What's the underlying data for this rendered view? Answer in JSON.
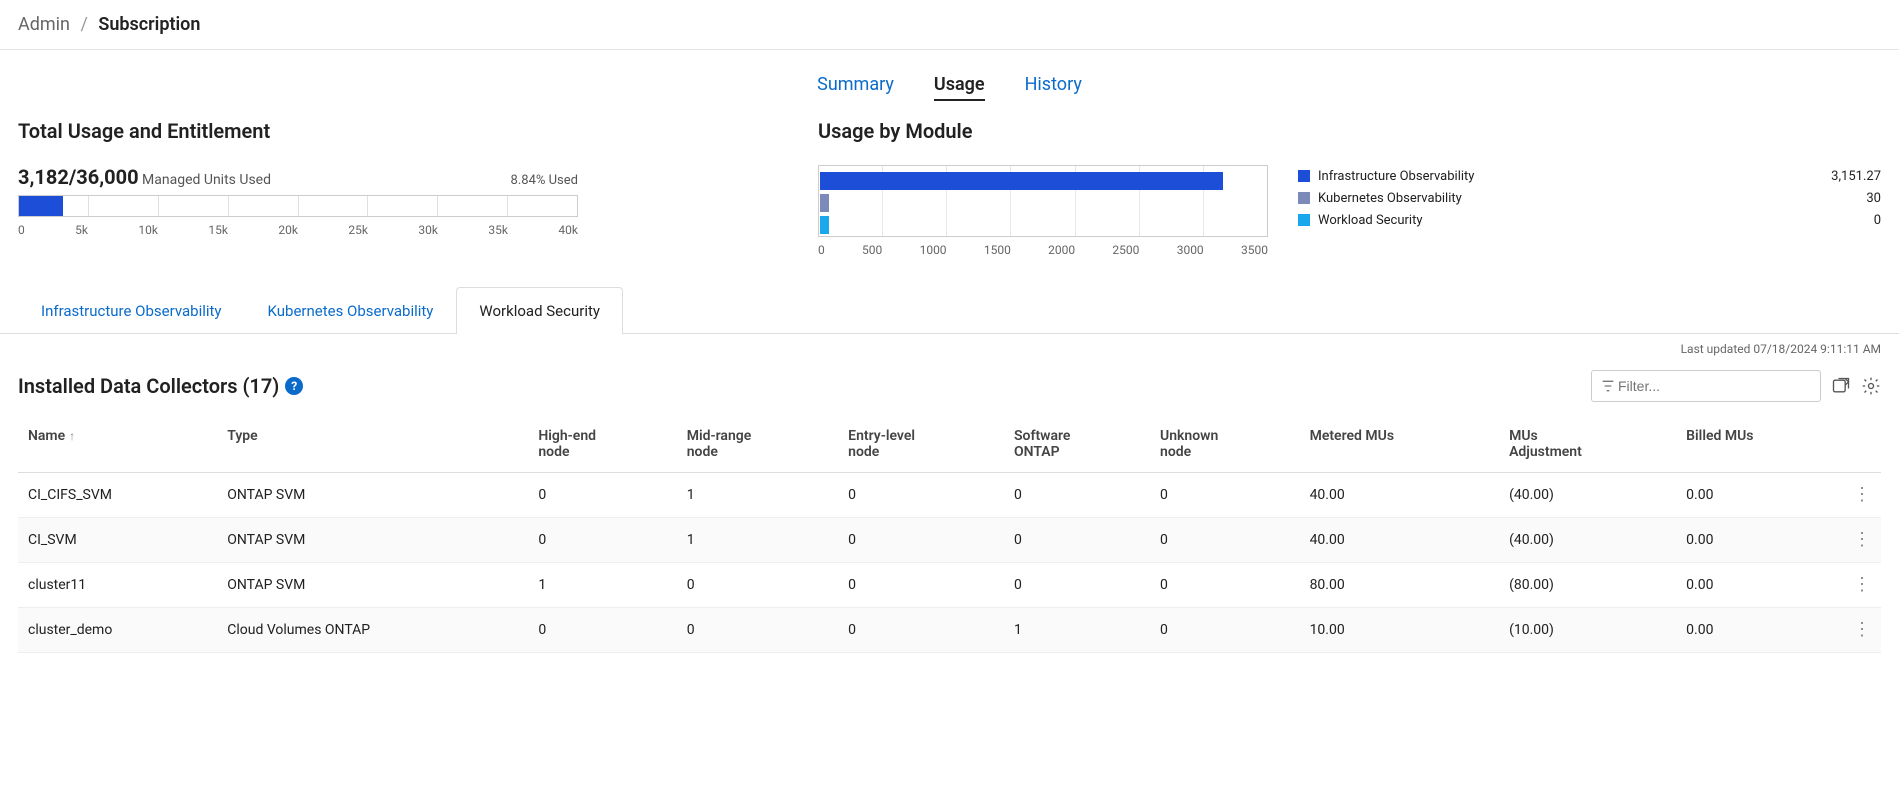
{
  "breadcrumb": {
    "parent": "Admin",
    "current": "Subscription"
  },
  "top_tabs": [
    {
      "label": "Summary",
      "active": false
    },
    {
      "label": "Usage",
      "active": true
    },
    {
      "label": "History",
      "active": false
    }
  ],
  "usage_panel": {
    "title": "Total Usage and Entitlement",
    "used": "3,182",
    "total": "36,000",
    "caption": "Managed Units Used",
    "pct_label": "8.84% Used",
    "bar": {
      "fill_pct": 7.96,
      "max": 40000,
      "ticks": [
        "0",
        "5k",
        "10k",
        "15k",
        "20k",
        "25k",
        "30k",
        "35k",
        "40k"
      ],
      "fill_color": "#1d4ed8",
      "grid_color": "#e0e0e0",
      "border_color": "#cccccc"
    }
  },
  "module_panel": {
    "title": "Usage by Module",
    "axis_max": 3500,
    "ticks": [
      "0",
      "500",
      "1000",
      "1500",
      "2000",
      "2500",
      "3000",
      "3500"
    ],
    "border_color": "#cccccc",
    "grid_color": "#e8e8e8",
    "series": [
      {
        "label": "Infrastructure Observability",
        "value_raw": 3151.27,
        "value": "3,151.27",
        "color": "#1d4ed8"
      },
      {
        "label": "Kubernetes Observability",
        "value_raw": 30,
        "value": "30",
        "color": "#7b8ab8"
      },
      {
        "label": "Workload Security",
        "value_raw": 0,
        "value": "0",
        "color": "#1aa7ec"
      }
    ]
  },
  "sub_tabs": [
    {
      "label": "Infrastructure Observability",
      "active": false
    },
    {
      "label": "Kubernetes Observability",
      "active": false
    },
    {
      "label": "Workload Security",
      "active": true
    }
  ],
  "last_updated": "Last updated 07/18/2024 9:11:11 AM",
  "collectors": {
    "title_prefix": "Installed Data Collectors",
    "count": "(17)",
    "filter_placeholder": "Filter...",
    "columns": [
      "Name",
      "Type",
      "High-end node",
      "Mid-range node",
      "Entry-level node",
      "Software ONTAP",
      "Unknown node",
      "Metered MUs",
      "MUs Adjustment",
      "Billed MUs"
    ],
    "sort_col": 0,
    "rows": [
      {
        "cells": [
          "CI_CIFS_SVM",
          "ONTAP SVM",
          "0",
          "1",
          "0",
          "0",
          "0",
          "40.00",
          "(40.00)",
          "0.00"
        ]
      },
      {
        "cells": [
          "CI_SVM",
          "ONTAP SVM",
          "0",
          "1",
          "0",
          "0",
          "0",
          "40.00",
          "(40.00)",
          "0.00"
        ]
      },
      {
        "cells": [
          "cluster11",
          "ONTAP SVM",
          "1",
          "0",
          "0",
          "0",
          "0",
          "80.00",
          "(80.00)",
          "0.00"
        ]
      },
      {
        "cells": [
          "cluster_demo",
          "Cloud Volumes ONTAP",
          "0",
          "0",
          "0",
          "1",
          "0",
          "10.00",
          "(10.00)",
          "0.00"
        ]
      }
    ]
  }
}
